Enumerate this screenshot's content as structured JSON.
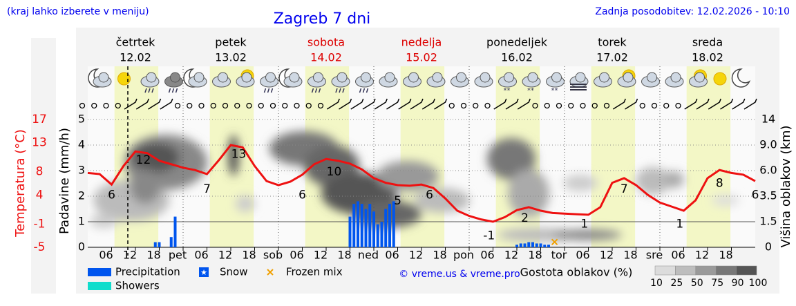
{
  "header": {
    "hint": "(kraj lahko izberete v meniju)",
    "title": "Zagreb 7 dni",
    "updated": "Zadnja posodobitev: 12.02.2026 - 10:10"
  },
  "chart_data": {
    "type": "combo",
    "days": [
      {
        "name": "četrtek",
        "date": "12.02",
        "color": "#000000"
      },
      {
        "name": "petek",
        "date": "13.02",
        "color": "#000000"
      },
      {
        "name": "sobota",
        "date": "14.02",
        "color": "#dd0000"
      },
      {
        "name": "nedelja",
        "date": "15.02",
        "color": "#dd0000"
      },
      {
        "name": "ponedeljek",
        "date": "16.02",
        "color": "#000000"
      },
      {
        "name": "torek",
        "date": "17.02",
        "color": "#000000"
      },
      {
        "name": "sreda",
        "date": "18.02",
        "color": "#000000"
      }
    ],
    "xlim": [
      0,
      168
    ],
    "xticks": [
      {
        "value": 6,
        "label": "06"
      },
      {
        "value": 12,
        "label": "12"
      },
      {
        "value": 18,
        "label": "18"
      },
      {
        "value": 24,
        "label": "pet"
      },
      {
        "value": 30,
        "label": "06"
      },
      {
        "value": 36,
        "label": "12"
      },
      {
        "value": 42,
        "label": "18"
      },
      {
        "value": 48,
        "label": "sob"
      },
      {
        "value": 54,
        "label": "06"
      },
      {
        "value": 60,
        "label": "12"
      },
      {
        "value": 66,
        "label": "18"
      },
      {
        "value": 72,
        "label": "ned"
      },
      {
        "value": 78,
        "label": "06"
      },
      {
        "value": 84,
        "label": "12"
      },
      {
        "value": 90,
        "label": "18"
      },
      {
        "value": 96,
        "label": "pon"
      },
      {
        "value": 102,
        "label": "06"
      },
      {
        "value": 108,
        "label": "12"
      },
      {
        "value": 114,
        "label": "18"
      },
      {
        "value": 120,
        "label": "tor"
      },
      {
        "value": 126,
        "label": "06"
      },
      {
        "value": 132,
        "label": "12"
      },
      {
        "value": 138,
        "label": "18"
      },
      {
        "value": 144,
        "label": "sre"
      },
      {
        "value": 150,
        "label": "06"
      },
      {
        "value": 156,
        "label": "12"
      },
      {
        "value": 162,
        "label": "18"
      }
    ],
    "y_label": "Padavine (mm/h)",
    "ylim": [
      0,
      5
    ],
    "yticks": [
      0,
      1,
      2,
      3,
      4,
      5
    ],
    "t_label": "Temperatura (°C)",
    "tlim": [
      -5,
      17
    ],
    "tticks": [
      -5,
      -1,
      4,
      8,
      13,
      17
    ],
    "t_color": "#ee1111",
    "y2_label": "Višina oblakov (km)",
    "y2lim": [
      0,
      14
    ],
    "y2ticks": [
      0,
      1.5,
      3.5,
      {
        "value": 6,
        "label": "6.0"
      },
      {
        "value": 9,
        "label": "9.0"
      },
      14
    ],
    "temperature": {
      "color": "#ee1111",
      "x": [
        0,
        3,
        6,
        9,
        12,
        15,
        18,
        21,
        24,
        27,
        30,
        33,
        36,
        39,
        42,
        45,
        48,
        51,
        54,
        57,
        60,
        63,
        66,
        69,
        72,
        75,
        78,
        81,
        84,
        87,
        90,
        93,
        96,
        99,
        102,
        105,
        108,
        111,
        114,
        117,
        120,
        123,
        126,
        129,
        132,
        135,
        138,
        141,
        144,
        147,
        150,
        153,
        156,
        159,
        162,
        165,
        168
      ],
      "values": [
        7.8,
        7.6,
        5.8,
        9.0,
        11.5,
        11.2,
        9.9,
        9.3,
        8.7,
        8.3,
        7.6,
        10,
        12.6,
        12.2,
        9.0,
        6.4,
        5.7,
        6.3,
        7.5,
        9.3,
        10.2,
        9.9,
        9.4,
        8.4,
        6.9,
        6.1,
        5.7,
        5.6,
        5.8,
        5.2,
        3.4,
        1.3,
        0.4,
        -0.2,
        -0.6,
        0.2,
        1.4,
        1.9,
        1.3,
        0.9,
        0.8,
        0.7,
        0.6,
        1.9,
        6.1,
        6.9,
        5.7,
        4.0,
        2.7,
        2.0,
        1.3,
        3.1,
        6.9,
        8.3,
        7.8,
        7.5,
        6.4
      ]
    },
    "extremes": {
      "x": [
        6,
        14,
        30,
        38,
        54,
        62,
        78,
        86,
        101,
        110,
        125,
        135,
        149,
        159,
        168
      ],
      "values": [
        6,
        12,
        7,
        13,
        6,
        10,
        5,
        6,
        -1,
        2,
        1,
        7,
        1,
        8,
        6
      ]
    },
    "series": [
      {
        "name": "Precipitation",
        "color": "#0055ee",
        "x": [
          17,
          18,
          21,
          22,
          66,
          67,
          68,
          69,
          70,
          71,
          72,
          73,
          74,
          75,
          76,
          77
        ],
        "values": [
          0.2,
          0.2,
          0.4,
          1.2,
          1.2,
          1.7,
          1.8,
          1.7,
          1.5,
          1.7,
          1.4,
          0.9,
          1.0,
          1.5,
          1.7,
          1.8
        ]
      },
      {
        "name": "Snow",
        "color": "#0055ee",
        "x": [
          108,
          109,
          110,
          111,
          112,
          113,
          114,
          115,
          116
        ],
        "values": [
          0.1,
          0.15,
          0.15,
          0.2,
          0.2,
          0.15,
          0.15,
          0.1,
          0.1
        ]
      },
      {
        "name": "Frozen mix",
        "color": "#f0a000",
        "x": [
          117.5
        ],
        "values": [
          0.1
        ]
      },
      {
        "name": "Showers",
        "color": "#11ddcc",
        "x": [],
        "values": []
      }
    ],
    "copyright": "© vreme.us & vreme.pro",
    "cloud_legend": {
      "title": "Gostota oblakov (%)",
      "ticks": [
        10,
        25,
        50,
        75,
        90,
        100
      ],
      "colors": [
        "#dcdcdc",
        "#bdbdbd",
        "#9a9a9a",
        "#777777",
        "#555555"
      ]
    }
  }
}
